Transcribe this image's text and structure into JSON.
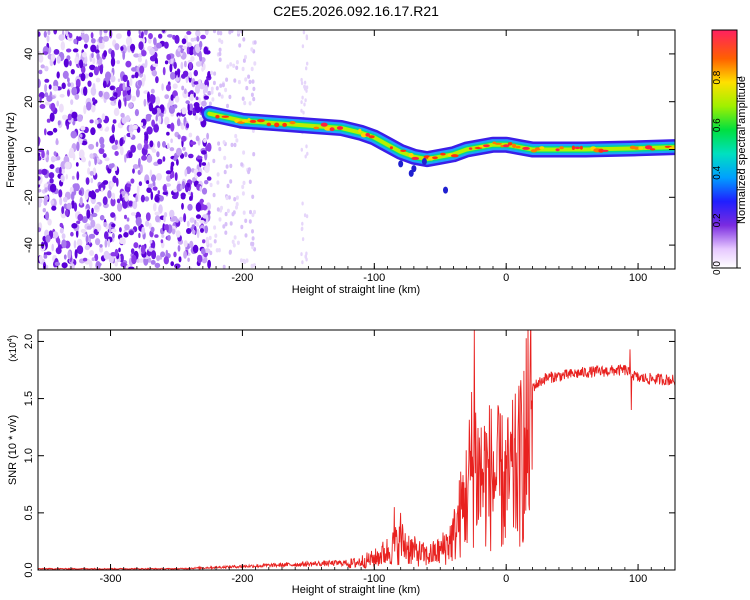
{
  "title": "C2E5.2026.092.16.17.R21",
  "chart_data": [
    {
      "type": "heatmap",
      "xlabel": "Height of straight line (km)",
      "ylabel": "Frequency (Hz)",
      "xlim": [
        -355,
        128
      ],
      "ylim": [
        -50,
        50
      ],
      "xticks": [
        -300,
        -200,
        -100,
        0,
        100
      ],
      "yticks": [
        -40,
        -20,
        0,
        20,
        40
      ],
      "colorbar": {
        "label": "Normalized spectral amplitude",
        "range": [
          0,
          1
        ],
        "ticks": [
          0.0,
          0.2,
          0.4,
          0.6,
          0.8
        ],
        "tick_labels": [
          "0.0",
          "0.2",
          "0.4",
          "0.6",
          "0.8"
        ]
      },
      "band_track": [
        {
          "x": -225,
          "y": 15
        },
        {
          "x": -200,
          "y": 12
        },
        {
          "x": -175,
          "y": 11
        },
        {
          "x": -150,
          "y": 10
        },
        {
          "x": -125,
          "y": 9
        },
        {
          "x": -110,
          "y": 7
        },
        {
          "x": -100,
          "y": 5
        },
        {
          "x": -90,
          "y": 2
        },
        {
          "x": -80,
          "y": -1
        },
        {
          "x": -70,
          "y": -3
        },
        {
          "x": -60,
          "y": -4
        },
        {
          "x": -50,
          "y": -3
        },
        {
          "x": -40,
          "y": -2
        },
        {
          "x": -30,
          "y": 0
        },
        {
          "x": -20,
          "y": 1
        },
        {
          "x": -10,
          "y": 2
        },
        {
          "x": 0,
          "y": 2
        },
        {
          "x": 10,
          "y": 1
        },
        {
          "x": 20,
          "y": 0
        },
        {
          "x": 60,
          "y": 0
        },
        {
          "x": 100,
          "y": 0.5
        },
        {
          "x": 128,
          "y": 1
        }
      ],
      "noise_region_x": [
        -355,
        -225
      ]
    },
    {
      "type": "line",
      "xlabel": "Height of straight line (km)",
      "ylabel": "SNR (10 * v/v)",
      "yscale_label": "(x10",
      "yscale_exponent": "4",
      "yscale_suffix": ")",
      "xlim": [
        -355,
        128
      ],
      "ylim": [
        0,
        2.1
      ],
      "xticks": [
        -300,
        -200,
        -100,
        0,
        100
      ],
      "yticks": [
        0.0,
        0.5,
        1.0,
        1.5,
        2.0
      ],
      "ytick_labels": [
        "0.0",
        "0.5",
        "1.0",
        "1.5",
        "2.0"
      ],
      "series": [
        {
          "name": "SNR",
          "color": "#e8211f",
          "envelope": [
            {
              "x": -355,
              "y": 0.01
            },
            {
              "x": -250,
              "y": 0.01
            },
            {
              "x": -200,
              "y": 0.03
            },
            {
              "x": -150,
              "y": 0.05
            },
            {
              "x": -120,
              "y": 0.06
            },
            {
              "x": -100,
              "y": 0.12
            },
            {
              "x": -90,
              "y": 0.2
            },
            {
              "x": -80,
              "y": 0.3
            },
            {
              "x": -70,
              "y": 0.2
            },
            {
              "x": -60,
              "y": 0.15
            },
            {
              "x": -50,
              "y": 0.2
            },
            {
              "x": -40,
              "y": 0.35
            },
            {
              "x": -30,
              "y": 0.8
            },
            {
              "x": -25,
              "y": 1.2
            },
            {
              "x": -20,
              "y": 1.0
            },
            {
              "x": -10,
              "y": 1.0
            },
            {
              "x": 0,
              "y": 0.9
            },
            {
              "x": 10,
              "y": 1.1
            },
            {
              "x": 15,
              "y": 1.4
            },
            {
              "x": 20,
              "y": 1.6
            },
            {
              "x": 30,
              "y": 1.68
            },
            {
              "x": 60,
              "y": 1.73
            },
            {
              "x": 90,
              "y": 1.75
            },
            {
              "x": 100,
              "y": 1.68
            },
            {
              "x": 128,
              "y": 1.66
            }
          ],
          "spikes": [
            {
              "x": -24,
              "y": 2.1
            },
            {
              "x": 94,
              "y": 1.93
            },
            {
              "x": 95,
              "y": 1.4
            },
            {
              "x": 15,
              "y": 0.52
            },
            {
              "x": -85,
              "y": 0.55
            },
            {
              "x": -80,
              "y": 0.5
            }
          ]
        }
      ]
    }
  ]
}
